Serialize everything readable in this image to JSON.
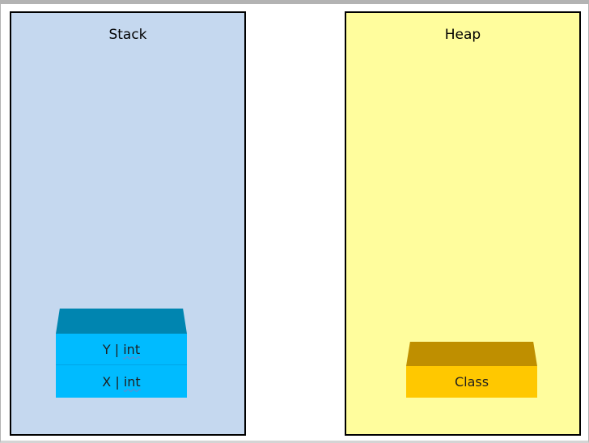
{
  "stack": {
    "title": "Stack",
    "items": [
      {
        "name": "Y",
        "separator": " | ",
        "type": "int"
      },
      {
        "name": "X",
        "separator": " | ",
        "type": "int"
      }
    ]
  },
  "heap": {
    "title": "Heap",
    "items": [
      {
        "label": "Class"
      }
    ]
  },
  "colors": {
    "stack_panel": "#c5d8ef",
    "heap_panel": "#fffd9d",
    "stack_block": "#00bbff",
    "stack_block_top": "#0085b0",
    "heap_block": "#ffc800",
    "heap_block_top": "#bf8f00"
  }
}
